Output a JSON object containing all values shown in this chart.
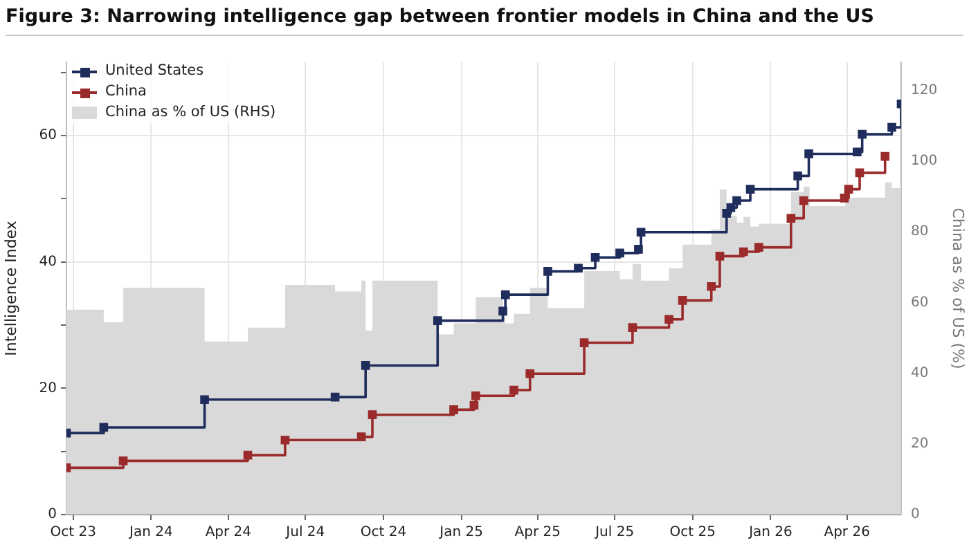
{
  "chart_data": {
    "type": "step",
    "title": "Figure 3: Narrowing intelligence gap between frontier models in China and the US",
    "ylabel": "Intelligence Index",
    "y2label": "China as % of US (%)",
    "xlim": [
      "2023-09-23",
      "2026-06-04"
    ],
    "xticks": [
      {
        "value": "2023-10-01",
        "label": "Oct 23"
      },
      {
        "value": "2024-01-01",
        "label": "Jan 24"
      },
      {
        "value": "2024-04-01",
        "label": "Apr 24"
      },
      {
        "value": "2024-07-01",
        "label": "Jul 24"
      },
      {
        "value": "2024-10-01",
        "label": "Oct 24"
      },
      {
        "value": "2025-01-01",
        "label": "Jan 25"
      },
      {
        "value": "2025-04-01",
        "label": "Apr 25"
      },
      {
        "value": "2025-07-01",
        "label": "Jul 25"
      },
      {
        "value": "2025-10-01",
        "label": "Oct 25"
      },
      {
        "value": "2026-01-01",
        "label": "Jan 26"
      },
      {
        "value": "2026-04-01",
        "label": "Apr 26"
      }
    ],
    "ylim": [
      0,
      71.6
    ],
    "yticks": [
      0,
      {
        "value": 10,
        "label": null
      },
      20,
      {
        "value": 30,
        "label": null
      },
      40,
      {
        "value": 50,
        "label": null
      },
      60,
      {
        "value": 70,
        "label": null
      }
    ],
    "y2lim": [
      0,
      128
    ],
    "y2ticks": [
      0,
      20,
      40,
      60,
      80,
      100,
      120
    ],
    "grid": true,
    "legend": "top left",
    "line_style": "solid",
    "series": [
      {
        "name": "United States",
        "marker": "square",
        "color": "#1f2d5c",
        "x": [
          "2023-09-23",
          "2023-11-06",
          "2024-03-04",
          "2024-08-05",
          "2024-09-10",
          "2024-12-04",
          "2025-02-19",
          "2025-02-22",
          "2025-04-13",
          "2025-05-19",
          "2025-06-08",
          "2025-07-07",
          "2025-07-29",
          "2025-08-01",
          "2025-11-10",
          "2025-11-15",
          "2025-11-22",
          "2025-12-08",
          "2026-02-02",
          "2026-02-15",
          "2026-04-13",
          "2026-04-19",
          "2026-05-24",
          "2026-06-04"
        ],
        "values": [
          12.9,
          13.8,
          18.2,
          18.6,
          23.6,
          30.7,
          32.2,
          34.8,
          38.5,
          39.0,
          40.7,
          41.4,
          42.0,
          44.7,
          47.7,
          48.6,
          49.7,
          51.5,
          53.6,
          57.1,
          57.4,
          60.2,
          61.3,
          65.0
        ]
      },
      {
        "name": "China",
        "marker": "square",
        "color": "#9b2a2a",
        "x": [
          "2023-09-23",
          "2023-11-29",
          "2024-04-24",
          "2024-06-07",
          "2024-09-05",
          "2024-09-18",
          "2024-12-23",
          "2025-01-16",
          "2025-01-18",
          "2025-03-04",
          "2025-03-23",
          "2025-05-26",
          "2025-07-22",
          "2025-09-03",
          "2025-09-19",
          "2025-10-23",
          "2025-11-02",
          "2025-11-30",
          "2025-12-18",
          "2026-01-25",
          "2026-02-09",
          "2026-03-29",
          "2026-04-03",
          "2026-04-16",
          "2026-05-16"
        ],
        "values": [
          7.4,
          8.5,
          9.4,
          11.8,
          12.3,
          15.8,
          16.6,
          17.3,
          18.8,
          19.7,
          22.3,
          27.2,
          29.6,
          30.9,
          33.9,
          36.1,
          40.9,
          41.6,
          42.3,
          46.9,
          49.7,
          50.1,
          51.5,
          54.1,
          56.7
        ]
      },
      {
        "name": "China as % of US (RHS)",
        "type": "area",
        "axis": "y2",
        "color": "#d9d9d9",
        "x": [
          "2023-09-23",
          "2023-11-06",
          "2023-11-29",
          "2024-03-04",
          "2024-04-24",
          "2024-06-07",
          "2024-08-05",
          "2024-09-05",
          "2024-09-10",
          "2024-09-18",
          "2024-12-04",
          "2024-12-23",
          "2025-01-18",
          "2025-02-19",
          "2025-02-22",
          "2025-03-04",
          "2025-03-23",
          "2025-04-13",
          "2025-05-26",
          "2025-07-07",
          "2025-07-22",
          "2025-08-01",
          "2025-09-03",
          "2025-09-19",
          "2025-10-23",
          "2025-11-02",
          "2025-11-10",
          "2025-11-22",
          "2025-11-30",
          "2025-12-08",
          "2025-12-18",
          "2026-01-25",
          "2026-02-09",
          "2026-02-16",
          "2026-03-30",
          "2026-05-16",
          "2026-05-24",
          "2026-06-04"
        ],
        "values": [
          58.0,
          54.4,
          64.2,
          49.0,
          52.9,
          65.0,
          63.1,
          66.2,
          52.1,
          66.2,
          51.0,
          54.1,
          61.5,
          56.4,
          54.1,
          56.8,
          64.2,
          58.4,
          68.9,
          66.6,
          70.9,
          66.2,
          69.7,
          76.4,
          80.7,
          92.0,
          84.6,
          82.6,
          84.2,
          81.5,
          82.3,
          91.3,
          92.8,
          87.3,
          89.7,
          94.0,
          92.4,
          92.4
        ]
      }
    ]
  }
}
